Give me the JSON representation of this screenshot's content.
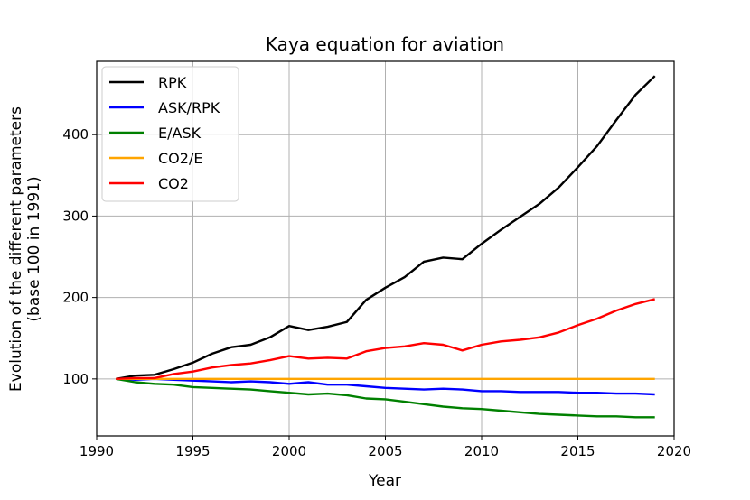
{
  "chart_data": {
    "type": "line",
    "title": "Kaya equation for aviation",
    "xlabel": "Year",
    "ylabel_line1": "Evolution of the different parameters",
    "ylabel_line2": "(base 100 in 1991)",
    "xlim": [
      1990,
      2020
    ],
    "ylim": [
      30,
      490
    ],
    "xticks": [
      1990,
      1995,
      2000,
      2005,
      2010,
      2015,
      2020
    ],
    "yticks": [
      100,
      200,
      300,
      400
    ],
    "grid": true,
    "legend_position": "top-left",
    "x": [
      1991,
      1992,
      1993,
      1994,
      1995,
      1996,
      1997,
      1998,
      1999,
      2000,
      2001,
      2002,
      2003,
      2004,
      2005,
      2006,
      2007,
      2008,
      2009,
      2010,
      2011,
      2012,
      2013,
      2014,
      2015,
      2016,
      2017,
      2018,
      2019
    ],
    "series": [
      {
        "name": "RPK",
        "color": "#000000",
        "values": [
          100,
          104,
          105,
          112,
          120,
          131,
          139,
          142,
          151,
          165,
          160,
          164,
          170,
          197,
          212,
          225,
          244,
          249,
          247,
          266,
          283,
          299,
          315,
          335,
          360,
          386,
          418,
          449,
          472
        ]
      },
      {
        "name": "ASK/RPK",
        "color": "#0000ff",
        "values": [
          100,
          99,
          100,
          99,
          98,
          97,
          96,
          97,
          96,
          94,
          96,
          93,
          93,
          91,
          89,
          88,
          87,
          88,
          87,
          85,
          85,
          84,
          84,
          84,
          83,
          83,
          82,
          82,
          81
        ]
      },
      {
        "name": "E/ASK",
        "color": "#008000",
        "values": [
          100,
          96,
          94,
          93,
          90,
          89,
          88,
          87,
          85,
          83,
          81,
          82,
          80,
          76,
          75,
          72,
          69,
          66,
          64,
          63,
          61,
          59,
          57,
          56,
          55,
          54,
          54,
          53,
          53
        ]
      },
      {
        "name": "CO2/E",
        "color": "#ffa500",
        "values": [
          100,
          100,
          100,
          100,
          100,
          100,
          100,
          100,
          100,
          100,
          100,
          100,
          100,
          100,
          100,
          100,
          100,
          100,
          100,
          100,
          100,
          100,
          100,
          100,
          100,
          100,
          100,
          100,
          100
        ]
      },
      {
        "name": "CO2",
        "color": "#ff0000",
        "values": [
          100,
          101,
          101,
          106,
          109,
          114,
          117,
          119,
          123,
          128,
          125,
          126,
          125,
          134,
          138,
          140,
          144,
          142,
          135,
          142,
          146,
          148,
          151,
          157,
          166,
          174,
          184,
          192,
          198
        ]
      }
    ]
  }
}
